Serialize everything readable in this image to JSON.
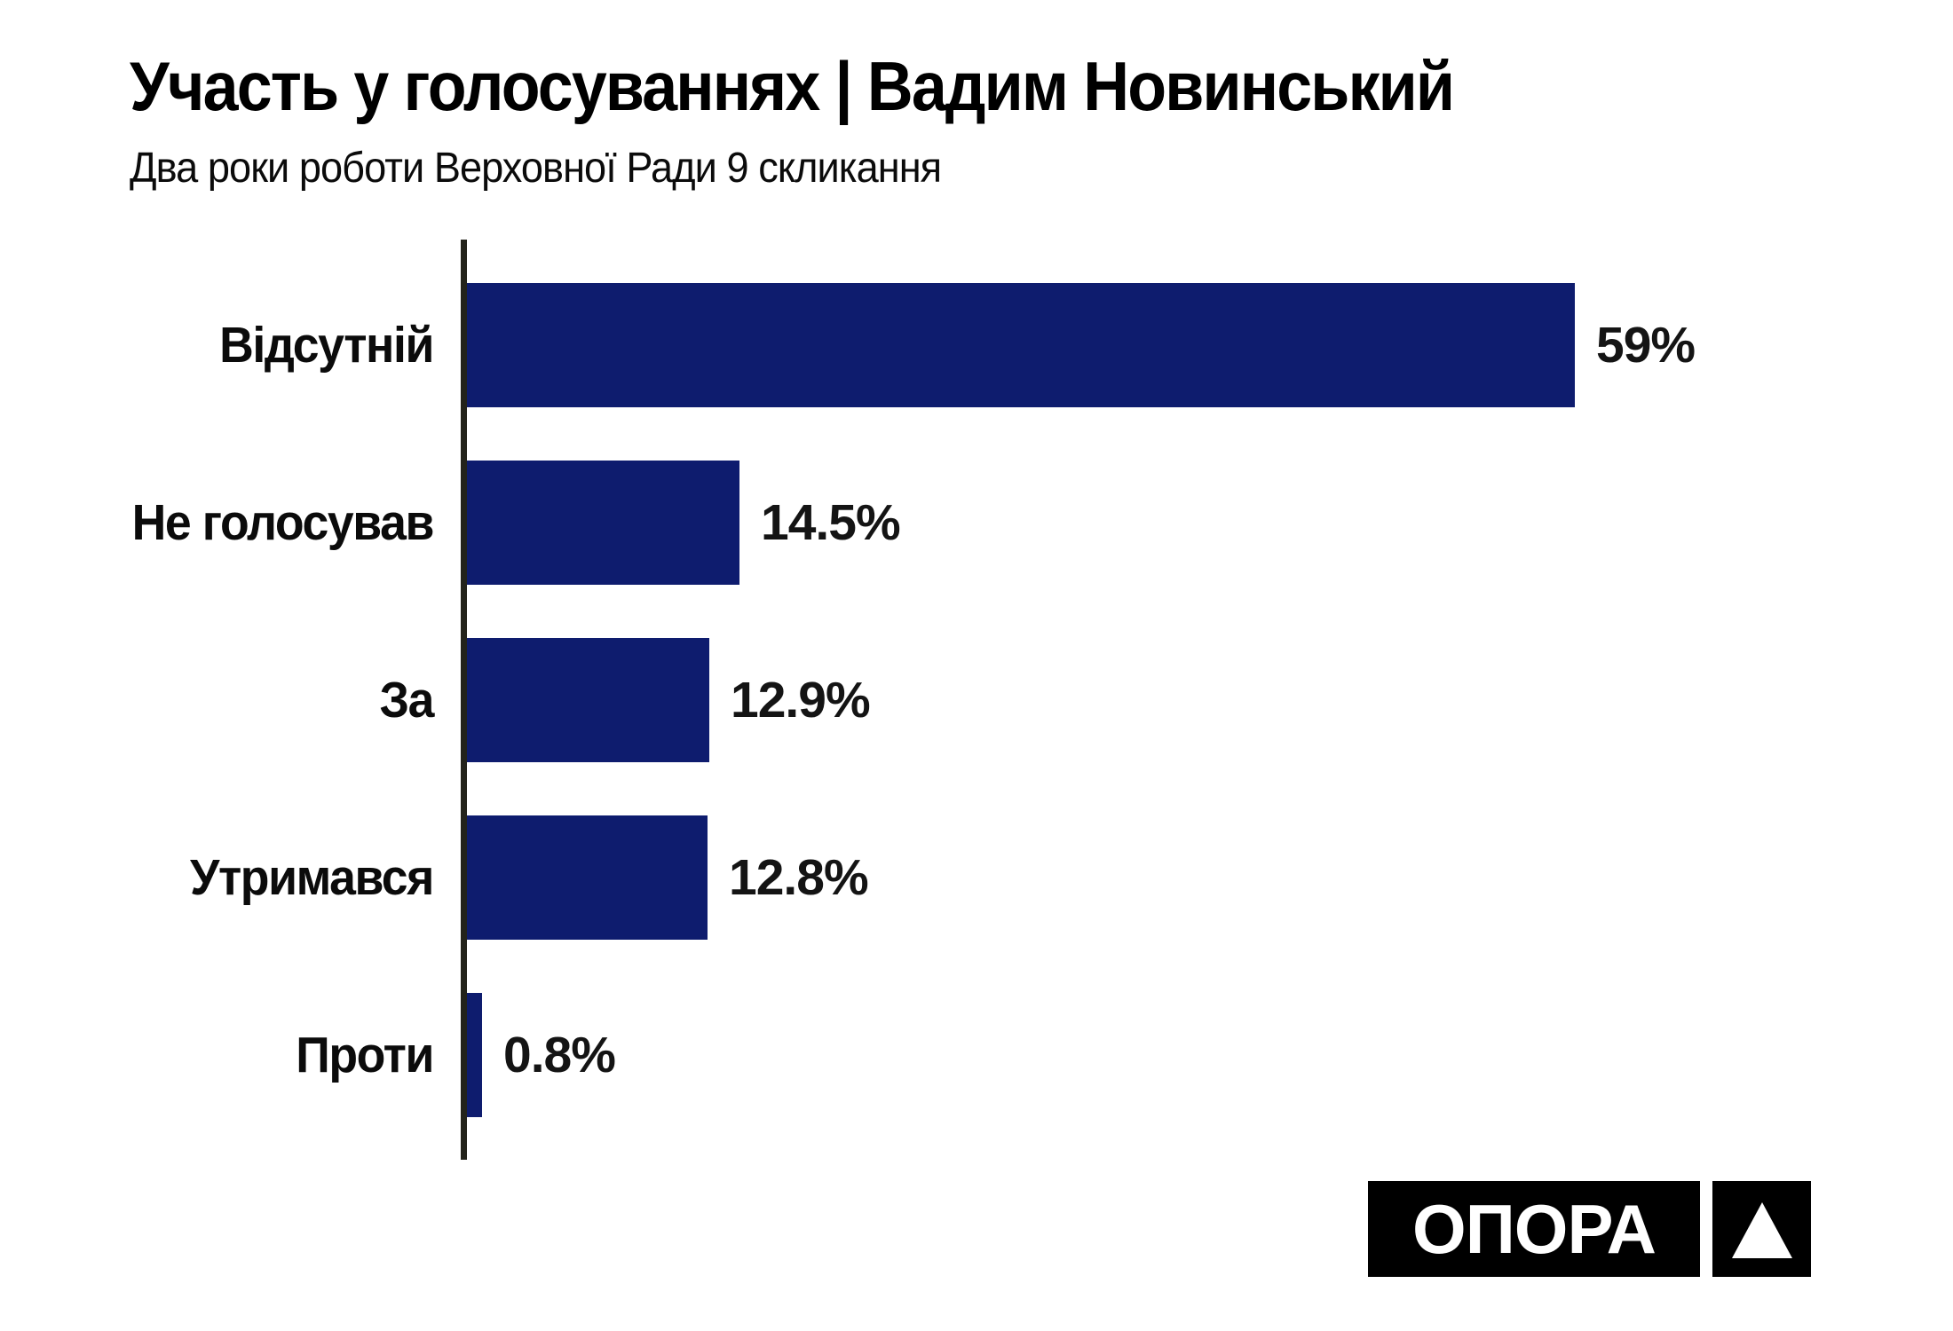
{
  "chart_data": {
    "type": "bar",
    "orientation": "horizontal",
    "title": "Участь у голосуваннях | Вадим Новинський",
    "subtitle": "Два роки роботи Верховної Ради 9 скликання",
    "categories": [
      "Відсутній",
      "Не голосував",
      "За",
      "Утримався",
      "Проти"
    ],
    "values": [
      59,
      14.5,
      12.9,
      12.8,
      0.8
    ],
    "value_labels": [
      "59%",
      "14.5%",
      "12.9%",
      "12.8%",
      "0.8%"
    ],
    "xlim": [
      0,
      62
    ],
    "grid": false,
    "legend": false,
    "bar_color": "#0e1c6e",
    "axis_line_color": "#23231b",
    "text_color": "#0b0b0b",
    "background_color": "#ffffff"
  },
  "logo": {
    "text": "ОПОРА",
    "icon": "triangle-up",
    "bg_color": "#000000",
    "fg_color": "#ffffff"
  }
}
